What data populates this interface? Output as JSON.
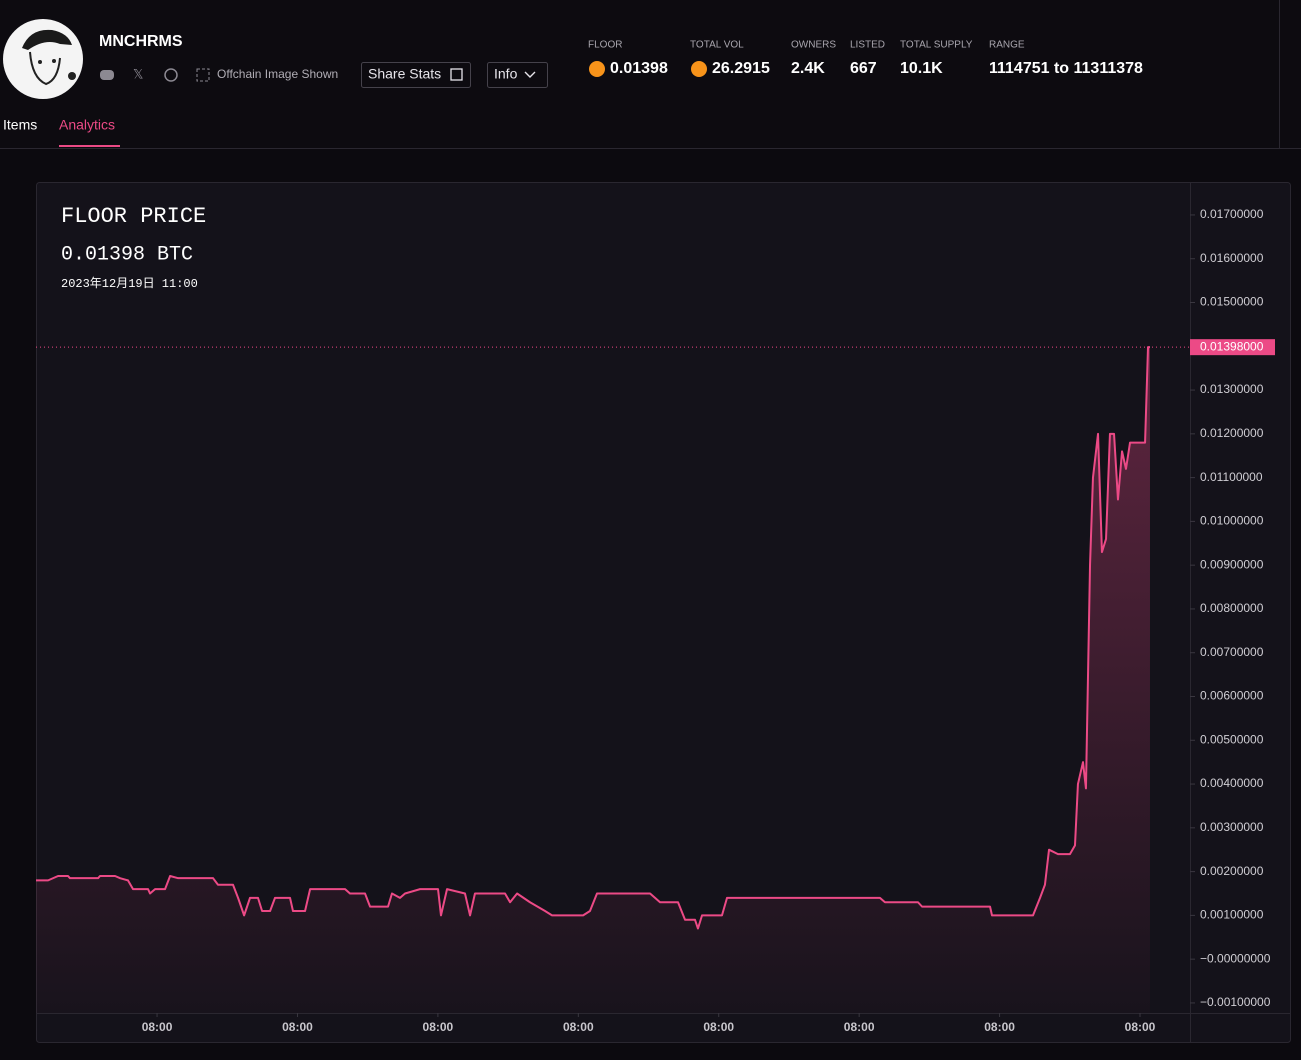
{
  "header": {
    "name": "MNCHRMS",
    "offchain": "Offchain Image Shown",
    "share_button": "Share Stats",
    "info_button": "Info",
    "stats": [
      {
        "label": "FLOOR",
        "value": "0.01398"
      },
      {
        "label": "TOTAL VOL",
        "value": "26.2915"
      },
      {
        "label": "OWNERS",
        "value": "2.4K"
      },
      {
        "label": "LISTED",
        "value": "667"
      },
      {
        "label": "TOTAL SUPPLY",
        "value": "10.1K"
      },
      {
        "label": "RANGE",
        "value": "1114751 to 11311378"
      }
    ]
  },
  "tabs": [
    "Items",
    "Analytics"
  ],
  "chart_data": {
    "type": "line",
    "title": "FLOOR PRICE",
    "subtitle": "0.01398 BTC",
    "date": "2023年12月19日 11:00",
    "xlim": [
      -0.862,
      7.356
    ],
    "ylim": [
      -0.00123,
      0.01773
    ],
    "grid": false,
    "xticks": [
      {
        "value": 0,
        "label": "08:00"
      },
      {
        "value": 1,
        "label": "08:00"
      },
      {
        "value": 2,
        "label": "08:00"
      },
      {
        "value": 3,
        "label": "08:00"
      },
      {
        "value": 4,
        "label": "08:00"
      },
      {
        "value": 5,
        "label": "08:00"
      },
      {
        "value": 6,
        "label": "08:00"
      },
      {
        "value": 7,
        "label": "08:00"
      }
    ],
    "yticks": [
      {
        "value": 0.017,
        "label": "0.01700000"
      },
      {
        "value": 0.016,
        "label": "0.01600000"
      },
      {
        "value": 0.015,
        "label": "0.01500000"
      },
      {
        "value": 0.013,
        "label": "0.01300000"
      },
      {
        "value": 0.012,
        "label": "0.01200000"
      },
      {
        "value": 0.011,
        "label": "0.01100000"
      },
      {
        "value": 0.01,
        "label": "0.01000000"
      },
      {
        "value": 0.009,
        "label": "0.00900000"
      },
      {
        "value": 0.008,
        "label": "0.00800000"
      },
      {
        "value": 0.007,
        "label": "0.00700000"
      },
      {
        "value": 0.006,
        "label": "0.00600000"
      },
      {
        "value": 0.005,
        "label": "0.00500000"
      },
      {
        "value": 0.004,
        "label": "0.00400000"
      },
      {
        "value": 0.003,
        "label": "0.00300000"
      },
      {
        "value": 0.002,
        "label": "0.00200000"
      },
      {
        "value": 0.001,
        "label": "0.00100000"
      },
      {
        "value": 0,
        "label": "−0.00000000"
      },
      {
        "value": -0.001,
        "label": "−0.00100000"
      }
    ],
    "price_line": {
      "value": 0.01398,
      "label": "0.01398000"
    },
    "series": [
      {
        "color": "#ec4a86",
        "x": [
          -0.862,
          -0.776,
          -0.705,
          -0.634,
          -0.62,
          -0.42,
          -0.406,
          -0.299,
          -0.263,
          -0.207,
          -0.171,
          -0.064,
          -0.05,
          -0.014,
          0.057,
          0.093,
          0.15,
          0.399,
          0.434,
          0.541,
          0.577,
          0.62,
          0.662,
          0.719,
          0.748,
          0.805,
          0.84,
          0.947,
          0.968,
          1.054,
          1.09,
          1.339,
          1.374,
          1.481,
          1.517,
          1.645,
          1.673,
          1.73,
          1.766,
          1.873,
          2.001,
          2.022,
          2.065,
          2.193,
          2.229,
          2.264,
          2.478,
          2.514,
          2.564,
          2.656,
          2.763,
          2.813,
          3.034,
          3.083,
          3.133,
          3.511,
          3.582,
          3.71,
          3.76,
          3.831,
          3.852,
          3.881,
          4.023,
          4.059,
          5.148,
          5.184,
          5.419,
          5.448,
          5.932,
          5.946,
          6.238,
          6.288,
          6.323,
          6.352,
          6.416,
          6.501,
          6.537,
          6.558,
          6.594,
          6.615,
          6.644,
          6.665,
          6.701,
          6.729,
          6.758,
          6.786,
          6.815,
          6.843,
          6.872,
          6.9,
          6.929,
          7.0,
          7.036,
          7.057,
          7.071
        ],
        "values": [
          0.0018,
          0.0018,
          0.0019,
          0.0019,
          0.00185,
          0.00185,
          0.0019,
          0.0019,
          0.00185,
          0.0018,
          0.0016,
          0.0016,
          0.0015,
          0.0016,
          0.0016,
          0.0019,
          0.00185,
          0.00185,
          0.0017,
          0.0017,
          0.0014,
          0.001,
          0.0014,
          0.0014,
          0.0011,
          0.0011,
          0.0014,
          0.0014,
          0.0011,
          0.0011,
          0.0016,
          0.0016,
          0.0015,
          0.0015,
          0.0012,
          0.0012,
          0.0015,
          0.0014,
          0.0015,
          0.0016,
          0.0016,
          0.001,
          0.0016,
          0.0015,
          0.001,
          0.0015,
          0.0015,
          0.0013,
          0.0015,
          0.0013,
          0.0011,
          0.001,
          0.001,
          0.0011,
          0.0015,
          0.0015,
          0.0013,
          0.0013,
          0.0009,
          0.0009,
          0.0007,
          0.001,
          0.001,
          0.0014,
          0.0014,
          0.0013,
          0.0013,
          0.0012,
          0.0012,
          0.001,
          0.001,
          0.0014,
          0.0017,
          0.0025,
          0.0024,
          0.0024,
          0.0026,
          0.004,
          0.0045,
          0.0039,
          0.009,
          0.011,
          0.012,
          0.0093,
          0.0096,
          0.012,
          0.012,
          0.0105,
          0.0116,
          0.0112,
          0.0118,
          0.0118,
          0.0118,
          0.01398,
          0.01398
        ]
      }
    ]
  }
}
